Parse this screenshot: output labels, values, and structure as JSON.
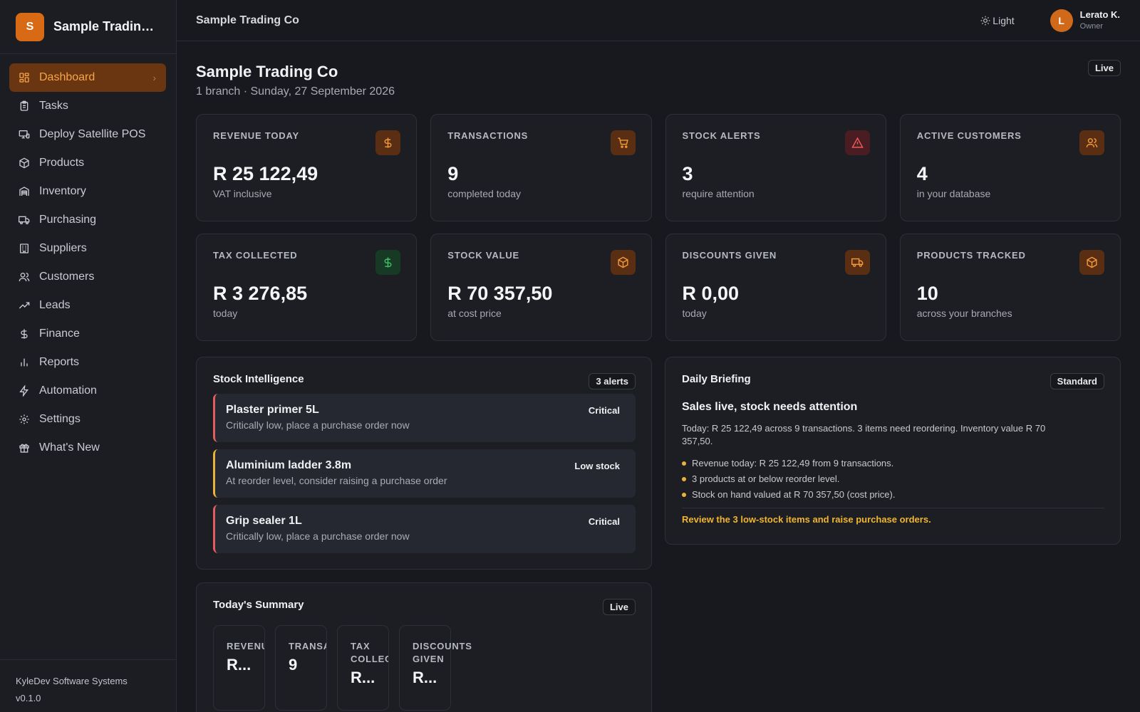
{
  "app": {
    "brand_initial": "S",
    "brand_name": "Sample Trading Co"
  },
  "sidebar": {
    "items": [
      {
        "label": "Dashboard",
        "icon": "dashboard-icon",
        "active": true
      },
      {
        "label": "Tasks",
        "icon": "clipboard-icon"
      },
      {
        "label": "Deploy Satellite POS",
        "icon": "monitor-icon"
      },
      {
        "label": "Products",
        "icon": "package-icon"
      },
      {
        "label": "Inventory",
        "icon": "warehouse-icon"
      },
      {
        "label": "Purchasing",
        "icon": "truck-icon"
      },
      {
        "label": "Suppliers",
        "icon": "building-icon"
      },
      {
        "label": "Customers",
        "icon": "users-icon"
      },
      {
        "label": "Leads",
        "icon": "trending-up-icon"
      },
      {
        "label": "Finance",
        "icon": "dollar-icon"
      },
      {
        "label": "Reports",
        "icon": "bar-chart-icon"
      },
      {
        "label": "Automation",
        "icon": "zap-icon"
      },
      {
        "label": "Settings",
        "icon": "gear-icon"
      },
      {
        "label": "What's New",
        "icon": "gift-icon"
      }
    ],
    "footer_company": "KyleDev Software Systems",
    "footer_version": "v0.1.0"
  },
  "topbar": {
    "title": "Sample Trading Co",
    "theme_label": "Light",
    "user_initial": "L",
    "user_name": "Lerato K.",
    "user_role": "Owner"
  },
  "header": {
    "title": "Sample Trading Co",
    "subtitle": "1 branch · Sunday, 27 September 2026",
    "status_badge": "Live"
  },
  "stats": [
    {
      "label": "REVENUE TODAY",
      "value": "R 25 122,49",
      "caption": "VAT inclusive",
      "icon": "dollar-icon",
      "tone": "orange"
    },
    {
      "label": "TRANSACTIONS",
      "value": "9",
      "caption": "completed today",
      "icon": "cart-icon",
      "tone": "orange"
    },
    {
      "label": "STOCK ALERTS",
      "value": "3",
      "caption": "require attention",
      "icon": "alert-triangle-icon",
      "tone": "red"
    },
    {
      "label": "ACTIVE CUSTOMERS",
      "value": "4",
      "caption": "in your database",
      "icon": "users-icon",
      "tone": "orange"
    },
    {
      "label": "TAX COLLECTED",
      "value": "R 3 276,85",
      "caption": "today",
      "icon": "dollar-icon",
      "tone": "green"
    },
    {
      "label": "STOCK VALUE",
      "value": "R 70 357,50",
      "caption": "at cost price",
      "icon": "package-icon",
      "tone": "orange"
    },
    {
      "label": "DISCOUNTS GIVEN",
      "value": "R 0,00",
      "caption": "today",
      "icon": "truck-icon",
      "tone": "orange"
    },
    {
      "label": "PRODUCTS TRACKED",
      "value": "10",
      "caption": "across your branches",
      "icon": "package-icon",
      "tone": "orange"
    }
  ],
  "stock_intelligence": {
    "title": "Stock Intelligence",
    "badge": "3 alerts",
    "items": [
      {
        "name": "Plaster primer 5L",
        "description": "Critically low, place a purchase order now",
        "status": "Critical",
        "severity": "critical"
      },
      {
        "name": "Aluminium ladder 3.8m",
        "description": "At reorder level, consider raising a purchase order",
        "status": "Low stock",
        "severity": "warning"
      },
      {
        "name": "Grip sealer 1L",
        "description": "Critically low, place a purchase order now",
        "status": "Critical",
        "severity": "critical"
      }
    ]
  },
  "daily_briefing": {
    "title": "Daily Briefing",
    "badge": "Standard",
    "headline": "Sales live, stock needs attention",
    "body": "Today: R 25 122,49 across 9 transactions. 3 items need reordering. Inventory value R 70 357,50.",
    "bullets": [
      "Revenue today: R 25 122,49 from 9 transactions.",
      "3 products at or below reorder level.",
      "Stock on hand valued at R 70 357,50 (cost price)."
    ],
    "action": "Review the 3 low-stock items and raise purchase orders."
  },
  "summary": {
    "title": "Today's Summary",
    "badge": "Live",
    "tiles": [
      {
        "label": "REVENUE",
        "value": "R..."
      },
      {
        "label": "TRANSAC",
        "value": "9"
      },
      {
        "label": "TAX COLLECT",
        "value": "R..."
      },
      {
        "label": "DISCOUNTS GIVEN",
        "value": "R..."
      }
    ]
  },
  "colors": {
    "accent": "#d86a15",
    "accent_text": "#f6a54a",
    "critical": "#e35d5d",
    "warning": "#e9b33a",
    "positive": "#3fbf6a"
  }
}
